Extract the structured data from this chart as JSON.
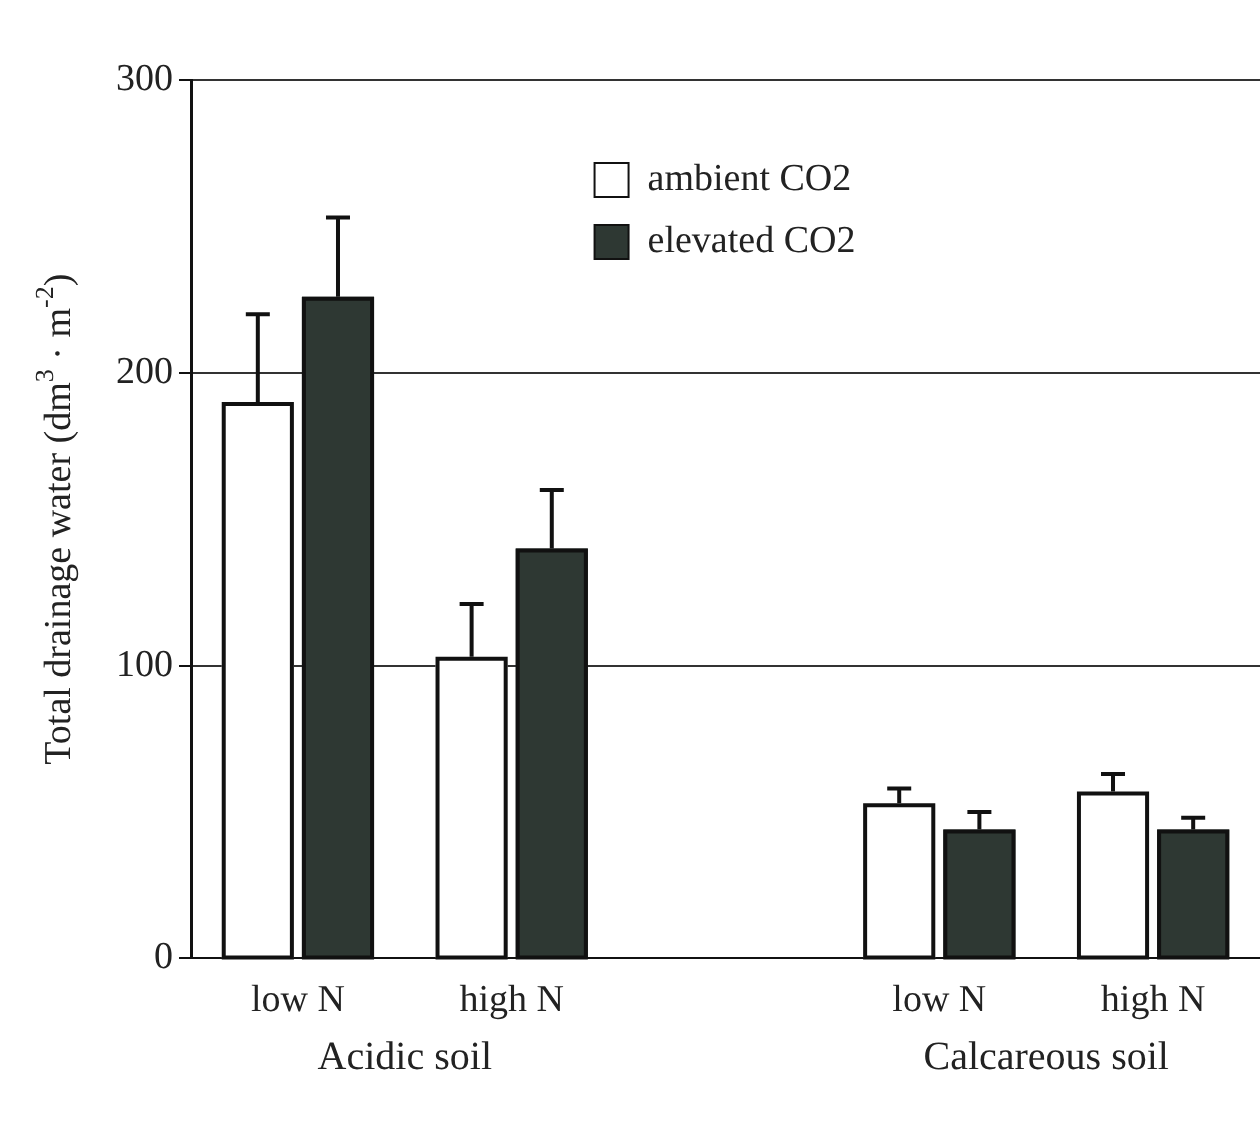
{
  "chart_data": {
    "type": "bar",
    "ylabel": "Total drainage water (dm$^{3}$ · m$^{-2}$)",
    "categories": [
      "low N",
      "high N",
      null,
      "low N",
      "high N"
    ],
    "series": [
      {
        "name": "ambient CO2",
        "color": "#ffffff",
        "values": [
          190,
          103,
          null,
          53,
          57
        ],
        "errors": [
          [
            190,
            220
          ],
          [
            103,
            121
          ],
          null,
          [
            53,
            58
          ],
          [
            57,
            63
          ]
        ]
      },
      {
        "name": "elevated CO2",
        "color": "#2e3833",
        "values": [
          226,
          140,
          null,
          44,
          44
        ],
        "errors": [
          [
            226,
            253
          ],
          [
            140,
            160
          ],
          null,
          [
            44,
            50
          ],
          [
            44,
            48
          ]
        ]
      }
    ],
    "ylim": [
      0,
      300
    ],
    "yticks": [
      0,
      100,
      200,
      300
    ],
    "grid": "y",
    "legend": "top",
    "annotations": [
      "Acidic soil",
      "Calcareous soil"
    ]
  }
}
